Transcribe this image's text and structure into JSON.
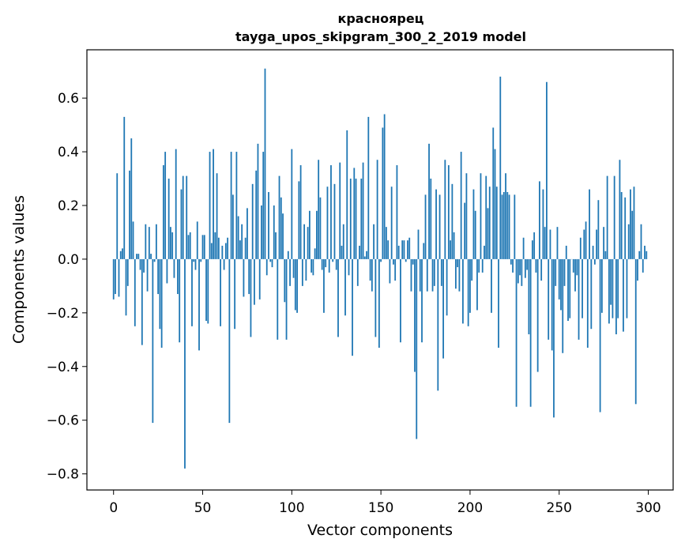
{
  "chart_data": {
    "type": "bar",
    "title": "красноярец\ntayga_upos_skipgram_300_2_2019 model",
    "title_lines": [
      "красноярец",
      "tayga_upos_skipgram_300_2_2019 model"
    ],
    "xlabel": "Vector components",
    "ylabel": "Components values",
    "xlim": [
      -14.95,
      313.95
    ],
    "ylim": [
      -0.86,
      0.78
    ],
    "xticks": [
      0,
      50,
      100,
      150,
      200,
      250,
      300
    ],
    "xtick_labels": [
      "0",
      "50",
      "100",
      "150",
      "200",
      "250",
      "300"
    ],
    "yticks": [
      -0.8,
      -0.6,
      -0.4,
      -0.2,
      0.0,
      0.2,
      0.4,
      0.6
    ],
    "ytick_labels": [
      "−0.8",
      "−0.6",
      "−0.4",
      "−0.2",
      "0.0",
      "0.2",
      "0.4",
      "0.6"
    ],
    "grid": false,
    "legend": "none",
    "bar_color": "#1f77b4",
    "x": [
      0,
      1,
      2,
      3,
      4,
      5,
      6,
      7,
      8,
      9,
      10,
      11,
      12,
      13,
      14,
      15,
      16,
      17,
      18,
      19,
      20,
      21,
      22,
      23,
      24,
      25,
      26,
      27,
      28,
      29,
      30,
      31,
      32,
      33,
      34,
      35,
      36,
      37,
      38,
      39,
      40,
      41,
      42,
      43,
      44,
      45,
      46,
      47,
      48,
      49,
      50,
      51,
      52,
      53,
      54,
      55,
      56,
      57,
      58,
      59,
      60,
      61,
      62,
      63,
      64,
      65,
      66,
      67,
      68,
      69,
      70,
      71,
      72,
      73,
      74,
      75,
      76,
      77,
      78,
      79,
      80,
      81,
      82,
      83,
      84,
      85,
      86,
      87,
      88,
      89,
      90,
      91,
      92,
      93,
      94,
      95,
      96,
      97,
      98,
      99,
      100,
      101,
      102,
      103,
      104,
      105,
      106,
      107,
      108,
      109,
      110,
      111,
      112,
      113,
      114,
      115,
      116,
      117,
      118,
      119,
      120,
      121,
      122,
      123,
      124,
      125,
      126,
      127,
      128,
      129,
      130,
      131,
      132,
      133,
      134,
      135,
      136,
      137,
      138,
      139,
      140,
      141,
      142,
      143,
      144,
      145,
      146,
      147,
      148,
      149,
      150,
      151,
      152,
      153,
      154,
      155,
      156,
      157,
      158,
      159,
      160,
      161,
      162,
      163,
      164,
      165,
      166,
      167,
      168,
      169,
      170,
      171,
      172,
      173,
      174,
      175,
      176,
      177,
      178,
      179,
      180,
      181,
      182,
      183,
      184,
      185,
      186,
      187,
      188,
      189,
      190,
      191,
      192,
      193,
      194,
      195,
      196,
      197,
      198,
      199,
      200,
      201,
      202,
      203,
      204,
      205,
      206,
      207,
      208,
      209,
      210,
      211,
      212,
      213,
      214,
      215,
      216,
      217,
      218,
      219,
      220,
      221,
      222,
      223,
      224,
      225,
      226,
      227,
      228,
      229,
      230,
      231,
      232,
      233,
      234,
      235,
      236,
      237,
      238,
      239,
      240,
      241,
      242,
      243,
      244,
      245,
      246,
      247,
      248,
      249,
      250,
      251,
      252,
      253,
      254,
      255,
      256,
      257,
      258,
      259,
      260,
      261,
      262,
      263,
      264,
      265,
      266,
      267,
      268,
      269,
      270,
      271,
      272,
      273,
      274,
      275,
      276,
      277,
      278,
      279,
      280,
      281,
      282,
      283,
      284,
      285,
      286,
      287,
      288,
      289,
      290,
      291,
      292,
      293,
      294,
      295,
      296,
      297,
      298,
      299
    ],
    "values": [
      -0.15,
      -0.13,
      0.32,
      -0.14,
      0.03,
      0.04,
      0.53,
      -0.21,
      -0.1,
      0.33,
      0.45,
      0.14,
      -0.25,
      0.02,
      0.02,
      -0.04,
      -0.32,
      -0.05,
      0.13,
      -0.12,
      0.12,
      0.02,
      -0.61,
      -0.01,
      0.13,
      -0.13,
      -0.26,
      -0.33,
      0.35,
      0.4,
      -0.09,
      0.3,
      0.12,
      0.1,
      -0.07,
      0.41,
      -0.13,
      -0.31,
      0.26,
      0.31,
      -0.78,
      0.31,
      0.09,
      0.1,
      -0.25,
      -0.01,
      -0.04,
      0.14,
      -0.34,
      -0.01,
      0.09,
      0.09,
      -0.23,
      -0.24,
      0.4,
      0.06,
      0.41,
      0.1,
      0.32,
      0.08,
      -0.25,
      0.05,
      -0.04,
      0.06,
      0.08,
      -0.61,
      0.4,
      0.24,
      -0.26,
      0.4,
      0.16,
      0.07,
      0.13,
      -0.14,
      0.08,
      0.19,
      -0.13,
      -0.29,
      0.28,
      -0.17,
      0.33,
      0.43,
      -0.15,
      0.2,
      0.4,
      0.71,
      -0.06,
      0.25,
      -0.01,
      -0.03,
      0.2,
      0.1,
      -0.3,
      0.31,
      0.23,
      0.17,
      -0.16,
      -0.3,
      0.03,
      -0.1,
      0.41,
      -0.07,
      -0.19,
      -0.2,
      0.29,
      0.35,
      -0.1,
      0.13,
      -0.08,
      0.12,
      0.18,
      -0.05,
      -0.06,
      0.04,
      0.18,
      0.37,
      0.23,
      -0.04,
      -0.2,
      -0.03,
      0.27,
      -0.05,
      0.35,
      -0.01,
      0.28,
      -0.04,
      -0.29,
      0.36,
      0.05,
      0.13,
      -0.21,
      0.48,
      -0.06,
      0.3,
      -0.36,
      0.34,
      0.3,
      -0.1,
      0.05,
      0.3,
      0.36,
      0.01,
      0.03,
      0.53,
      -0.08,
      -0.12,
      0.13,
      -0.29,
      0.37,
      -0.33,
      -0.01,
      0.49,
      0.54,
      0.12,
      0.07,
      -0.09,
      0.27,
      -0.02,
      -0.08,
      0.35,
      0.05,
      -0.31,
      0.07,
      0.07,
      -0.01,
      0.07,
      0.08,
      -0.12,
      -0.02,
      -0.42,
      -0.67,
      0.11,
      -0.12,
      -0.31,
      0.06,
      0.24,
      -0.12,
      0.43,
      0.3,
      -0.12,
      -0.1,
      0.26,
      -0.49,
      0.24,
      -0.1,
      -0.37,
      0.37,
      -0.21,
      0.35,
      0.07,
      0.28,
      0.1,
      -0.11,
      -0.03,
      -0.12,
      0.4,
      -0.24,
      0.21,
      0.32,
      -0.25,
      -0.2,
      -0.08,
      0.26,
      0.18,
      -0.19,
      -0.05,
      0.32,
      -0.05,
      0.05,
      0.31,
      0.19,
      0.27,
      -0.2,
      0.49,
      0.41,
      0.27,
      -0.33,
      0.68,
      0.24,
      0.25,
      0.32,
      0.25,
      0.24,
      -0.02,
      -0.05,
      0.24,
      -0.55,
      -0.09,
      -0.06,
      -0.1,
      0.08,
      -0.07,
      -0.04,
      -0.28,
      -0.55,
      0.07,
      0.1,
      -0.05,
      -0.42,
      0.29,
      -0.08,
      0.26,
      0.12,
      0.66,
      -0.3,
      0.11,
      -0.34,
      -0.59,
      -0.1,
      0.12,
      -0.15,
      -0.19,
      -0.35,
      -0.1,
      0.05,
      -0.23,
      -0.22,
      0.0,
      -0.05,
      -0.12,
      -0.06,
      -0.3,
      0.08,
      -0.22,
      0.11,
      0.14,
      -0.33,
      0.26,
      -0.26,
      0.05,
      -0.02,
      0.11,
      0.22,
      -0.57,
      -0.2,
      0.12,
      0.03,
      0.31,
      -0.24,
      -0.17,
      -0.22,
      0.31,
      -0.28,
      -0.22,
      0.37,
      0.25,
      -0.27,
      0.23,
      -0.22,
      0.13,
      0.26,
      0.18,
      0.27,
      -0.54,
      -0.08,
      0.03,
      0.13,
      -0.05,
      0.05,
      0.03
    ]
  }
}
